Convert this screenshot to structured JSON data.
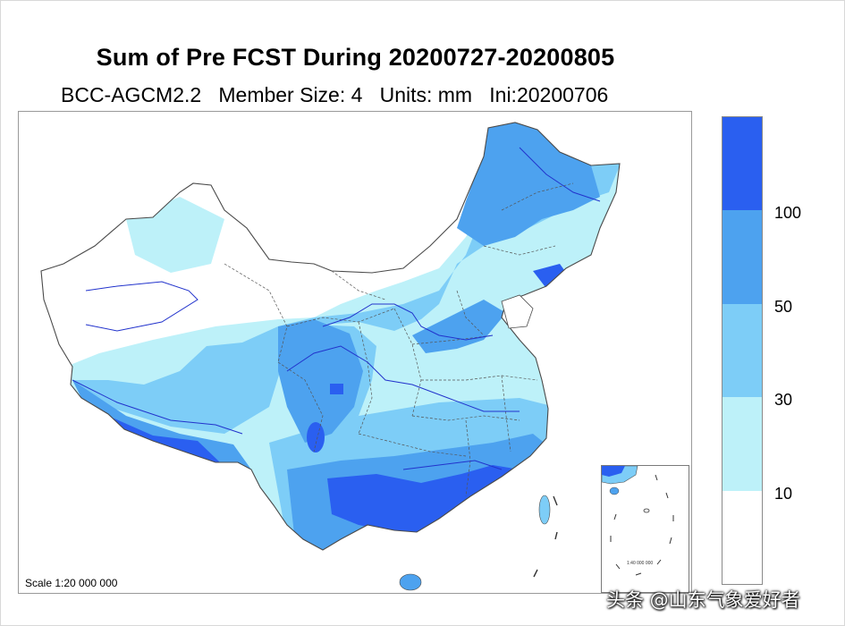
{
  "title": "Sum of Pre FCST During 20200727-20200805",
  "subtitle": "BCC-AGCM2.2   Member Size: 4   Units: mm   Ini:20200706",
  "map": {
    "scale_label": "Scale 1:20 000 000",
    "inset_scale_label": "1:40 000 000",
    "colors": {
      "lt10": "#ffffff",
      "c10_30": "#bdf1f9",
      "c30_50": "#7dcdf7",
      "c50_100": "#4da2ef",
      "gt100": "#2a5ff0",
      "border": "#4a4a4a",
      "river": "#2233cc"
    }
  },
  "legend": {
    "levels": [
      "10",
      "30",
      "50",
      "100"
    ],
    "colors": [
      "#ffffff",
      "#bdf1f9",
      "#7dcdf7",
      "#4da2ef",
      "#2a5ff0"
    ]
  },
  "watermark": "头条 @山东气象爱好者"
}
